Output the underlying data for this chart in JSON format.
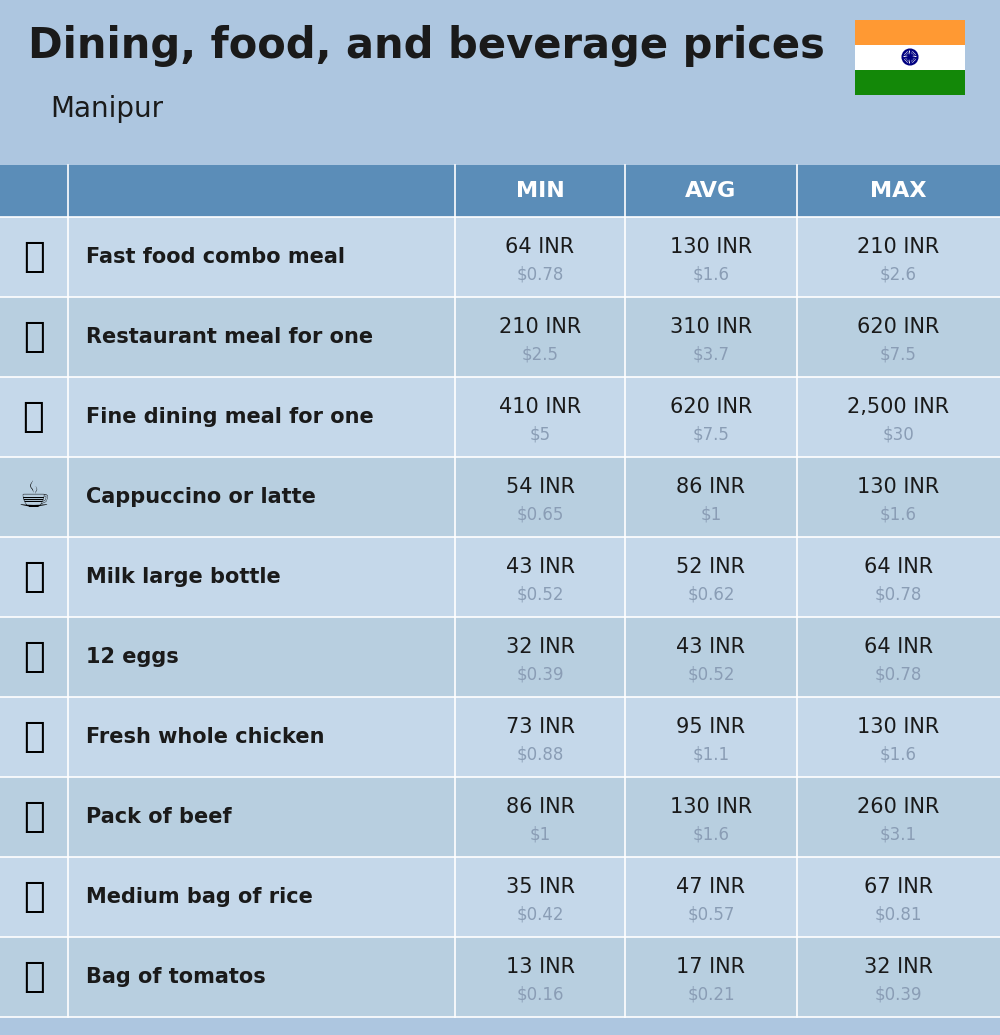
{
  "title": "Dining, food, and beverage prices",
  "subtitle": "Manipur",
  "bg_color": "#adc6e0",
  "header_bg": "#5b8db8",
  "header_text_color": "#ffffff",
  "row_bg_odd": "#c5d8ea",
  "row_bg_even": "#b8cfe0",
  "item_label_color": "#1a1a1a",
  "value_inr_color": "#1a1a1a",
  "value_usd_color": "#8a9db5",
  "columns": [
    "MIN",
    "AVG",
    "MAX"
  ],
  "icon_emojis": [
    "🍔",
    "🍳",
    "🍽️",
    "☕",
    "🥛",
    "🥚",
    "🐔",
    "🥩",
    "🍚",
    "🍅"
  ],
  "rows": [
    {
      "label": "Fast food combo meal",
      "min_inr": "64 INR",
      "min_usd": "$0.78",
      "avg_inr": "130 INR",
      "avg_usd": "$1.6",
      "max_inr": "210 INR",
      "max_usd": "$2.6"
    },
    {
      "label": "Restaurant meal for one",
      "min_inr": "210 INR",
      "min_usd": "$2.5",
      "avg_inr": "310 INR",
      "avg_usd": "$3.7",
      "max_inr": "620 INR",
      "max_usd": "$7.5"
    },
    {
      "label": "Fine dining meal for one",
      "min_inr": "410 INR",
      "min_usd": "$5",
      "avg_inr": "620 INR",
      "avg_usd": "$7.5",
      "max_inr": "2,500 INR",
      "max_usd": "$30"
    },
    {
      "label": "Cappuccino or latte",
      "min_inr": "54 INR",
      "min_usd": "$0.65",
      "avg_inr": "86 INR",
      "avg_usd": "$1",
      "max_inr": "130 INR",
      "max_usd": "$1.6"
    },
    {
      "label": "Milk large bottle",
      "min_inr": "43 INR",
      "min_usd": "$0.52",
      "avg_inr": "52 INR",
      "avg_usd": "$0.62",
      "max_inr": "64 INR",
      "max_usd": "$0.78"
    },
    {
      "label": "12 eggs",
      "min_inr": "32 INR",
      "min_usd": "$0.39",
      "avg_inr": "43 INR",
      "avg_usd": "$0.52",
      "max_inr": "64 INR",
      "max_usd": "$0.78"
    },
    {
      "label": "Fresh whole chicken",
      "min_inr": "73 INR",
      "min_usd": "$0.88",
      "avg_inr": "95 INR",
      "avg_usd": "$1.1",
      "max_inr": "130 INR",
      "max_usd": "$1.6"
    },
    {
      "label": "Pack of beef",
      "min_inr": "86 INR",
      "min_usd": "$1",
      "avg_inr": "130 INR",
      "avg_usd": "$1.6",
      "max_inr": "260 INR",
      "max_usd": "$3.1"
    },
    {
      "label": "Medium bag of rice",
      "min_inr": "35 INR",
      "min_usd": "$0.42",
      "avg_inr": "47 INR",
      "avg_usd": "$0.57",
      "max_inr": "67 INR",
      "max_usd": "$0.81"
    },
    {
      "label": "Bag of tomatos",
      "min_inr": "13 INR",
      "min_usd": "$0.16",
      "avg_inr": "17 INR",
      "avg_usd": "$0.21",
      "max_inr": "32 INR",
      "max_usd": "$0.39"
    }
  ],
  "flag_orange": "#FF9933",
  "flag_white": "#FFFFFF",
  "flag_green": "#138808",
  "flag_chakra": "#000080"
}
